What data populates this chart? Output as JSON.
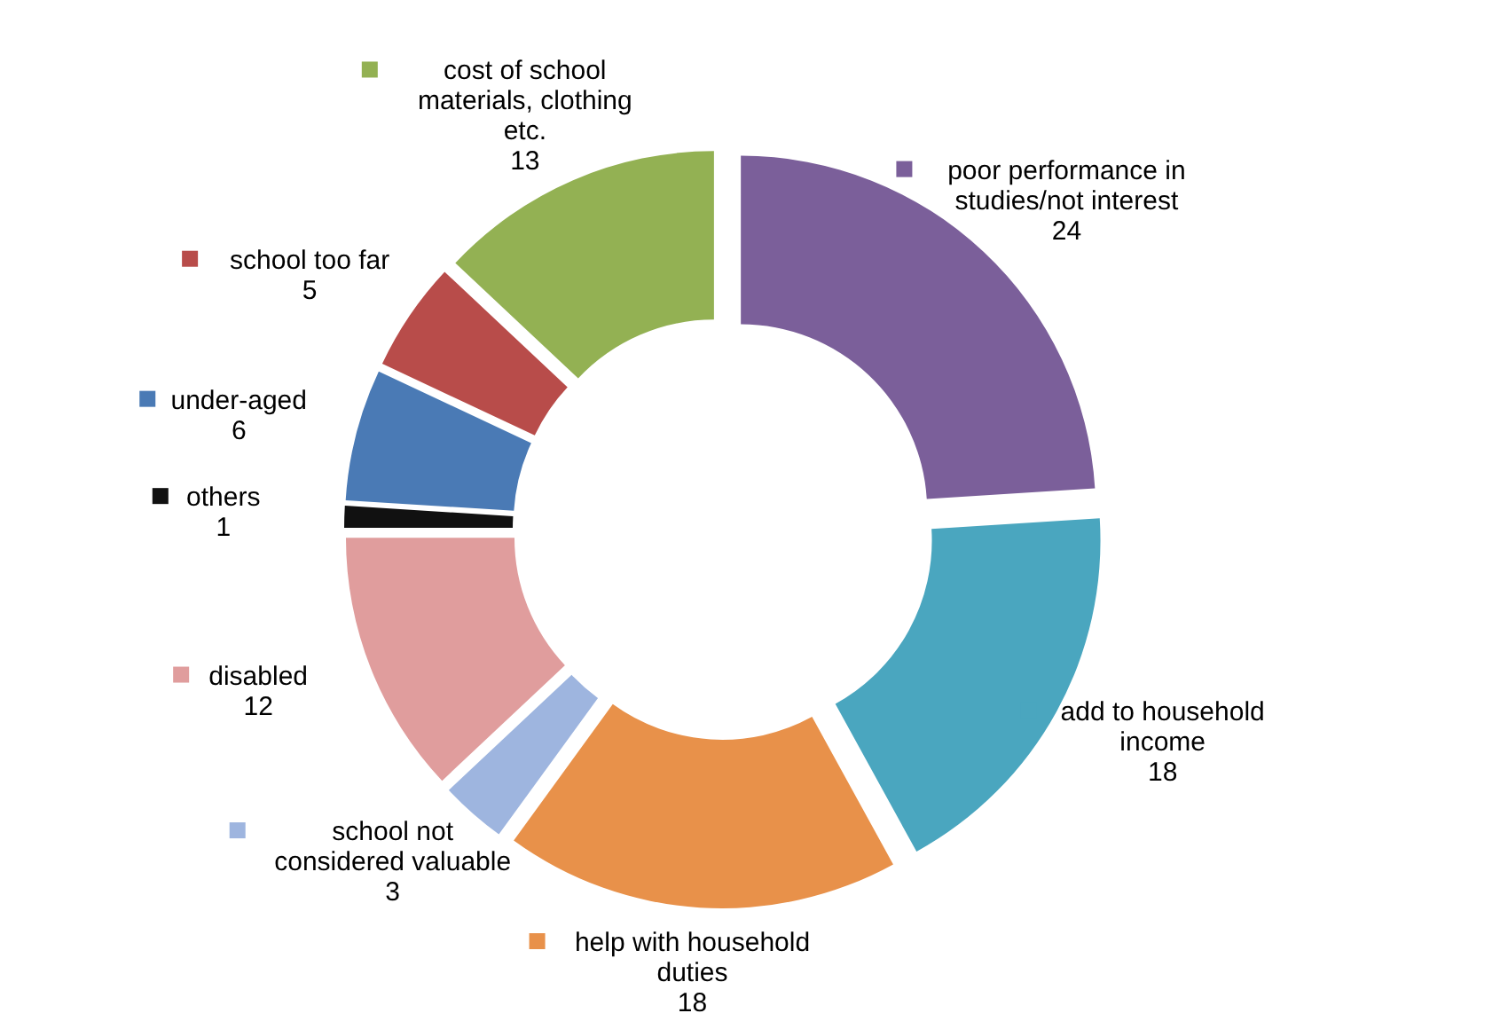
{
  "chart_data": {
    "type": "donut",
    "categories": [
      "poor performance in studies/not interest",
      "add to household income",
      "help with household duties",
      "school not considered valuable",
      "disabled",
      "others",
      "under-aged",
      "school too far",
      "cost of school materials, clothing etc."
    ],
    "values": [
      24,
      18,
      18,
      3,
      12,
      1,
      6,
      5,
      13
    ],
    "colors": [
      "#7b5f9a",
      "#4aa6bf",
      "#e8914a",
      "#9eb5df",
      "#e09d9d",
      "#111111",
      "#4a7ab5",
      "#b84c4a",
      "#93b153"
    ],
    "data_labels": true,
    "legend": true
  }
}
